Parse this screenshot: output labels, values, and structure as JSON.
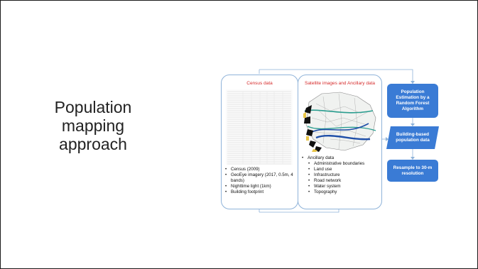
{
  "title_lines": [
    "Population",
    "mapping",
    "approach"
  ],
  "census_panel": {
    "header": "Census data",
    "bullets": [
      "Census (2009)",
      "GeoEye imagery (2017, 0.5m, 4 bands)",
      "Nighttime light (1km)",
      "Building footprint"
    ]
  },
  "satellite_panel": {
    "header": "Satellite images and Ancillary data",
    "ancillary_label": "Ancillary data",
    "ancillary_items": [
      "Administrative boundaries",
      "Land use",
      "Infrastructure",
      "Road network",
      "Water system",
      "Topography"
    ]
  },
  "flow": {
    "step1": "Population Estimation by a Random Forest Algorithm",
    "step2": "Building-based population data",
    "step3": "Resample to 30-m resolution"
  },
  "colors": {
    "flow_blue": "#3a7bd5",
    "panel_border": "#8fb3d9",
    "header_red": "#d62b2b"
  }
}
